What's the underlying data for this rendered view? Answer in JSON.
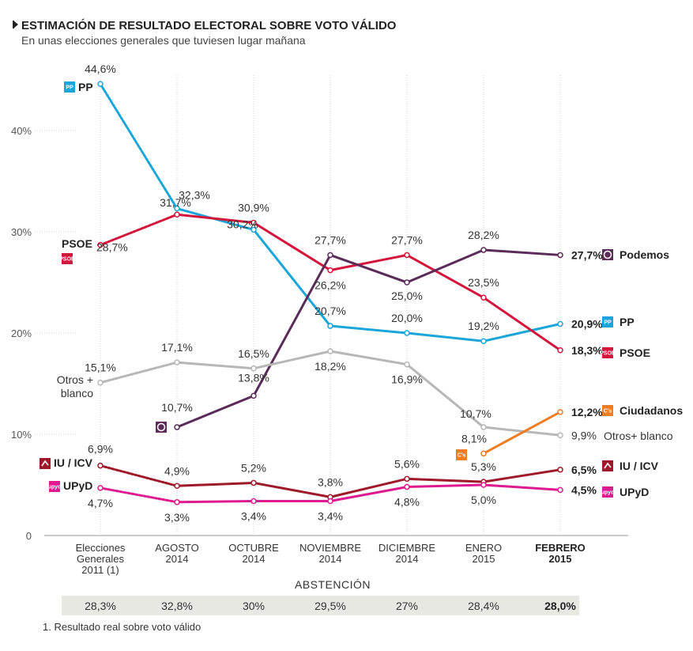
{
  "header": {
    "title": "ESTIMACIÓN DE RESULTADO ELECTORAL SOBRE VOTO VÁLIDO",
    "subtitle": "En unas elecciones generales que tuviesen lugar mañana"
  },
  "chart_data": {
    "type": "line",
    "categories": [
      [
        "Elecciones",
        "Generales",
        "2011 (1)"
      ],
      [
        "AGOSTO",
        "2014"
      ],
      [
        "OCTUBRE",
        "2014"
      ],
      [
        "NOVIEMBRE",
        "2014"
      ],
      [
        "DICIEMBRE",
        "2014"
      ],
      [
        "ENERO",
        "2015"
      ],
      [
        "FEBRERO",
        "2015"
      ]
    ],
    "highlight_category": 6,
    "ylim": [
      0,
      45
    ],
    "yticks": [
      0,
      10,
      20,
      30,
      40
    ],
    "ytick_labels": [
      "0",
      "10%",
      "20%",
      "30%",
      "40%"
    ],
    "grid": "vertical-dotted",
    "series": [
      {
        "name": "PP",
        "color": "#1aa6d9",
        "values": [
          44.6,
          32.3,
          30.2,
          20.7,
          20.0,
          19.2,
          20.9
        ],
        "labels": [
          "44,6%",
          "32,3%",
          "30,2%",
          "20,7%",
          "20,0%",
          "19,2%",
          "20,9%"
        ],
        "logo": "pp-logo-icon",
        "logo_text": "PP"
      },
      {
        "name": "PSOE",
        "color": "#d4163c",
        "values": [
          28.7,
          31.7,
          30.9,
          26.2,
          27.7,
          23.5,
          18.3
        ],
        "labels": [
          "28,7%",
          "31,7%",
          "30,9%",
          "26,2%",
          "27,7%",
          "23,5%",
          "18,3%"
        ],
        "logo": "psoe-logo-icon",
        "logo_text": "PSOE"
      },
      {
        "name": "Podemos",
        "color": "#5b2b59",
        "values": [
          null,
          10.7,
          13.8,
          27.7,
          25.0,
          28.2,
          27.7
        ],
        "labels": [
          null,
          "10,7%",
          "13,8%",
          "27,7%",
          "25,0%",
          "28,2%",
          "27,7%"
        ],
        "logo": "podemos-logo-icon"
      },
      {
        "name": "Otros+ blanco",
        "start_name": "Otros +\nblanco",
        "color": "#b7b7b7",
        "values": [
          15.1,
          17.1,
          16.5,
          18.2,
          16.9,
          10.7,
          9.9
        ],
        "labels": [
          "15,1%",
          "17,1%",
          "16,5%",
          "18,2%",
          "16,9%",
          "10,7%",
          "9,9%"
        ]
      },
      {
        "name": "Ciudadanos",
        "color": "#ef7d24",
        "values": [
          null,
          null,
          null,
          null,
          null,
          8.1,
          12.2
        ],
        "labels": [
          null,
          null,
          null,
          null,
          null,
          "8,1%",
          "12,2%"
        ],
        "logo": "ciudadanos-logo-icon",
        "logo_text": "C's"
      },
      {
        "name": "IU / ICV",
        "color": "#9e1a2a",
        "values": [
          6.9,
          4.9,
          5.2,
          3.8,
          5.6,
          5.3,
          6.5
        ],
        "labels": [
          "6,9%",
          "4,9%",
          "5,2%",
          "3,8%",
          "5,6%",
          "5,3%",
          "6,5%"
        ],
        "logo": "iu-logo-icon"
      },
      {
        "name": "UPyD",
        "color": "#dd1a8e",
        "values": [
          4.7,
          3.3,
          3.4,
          3.4,
          4.8,
          5.0,
          4.5
        ],
        "labels": [
          "4,7%",
          "3,3%",
          "3,4%",
          "3,4%",
          "4,8%",
          "5,0%",
          "4,5%"
        ],
        "logo": "upyd-logo-icon",
        "logo_text": "upyd"
      }
    ]
  },
  "abstention": {
    "title": "ABSTENCIÓN",
    "values": [
      "28,3%",
      "32,8%",
      "30%",
      "29,5%",
      "27%",
      "28,4%",
      "28,0%"
    ]
  },
  "footnote": "1. Resultado real sobre voto válido"
}
